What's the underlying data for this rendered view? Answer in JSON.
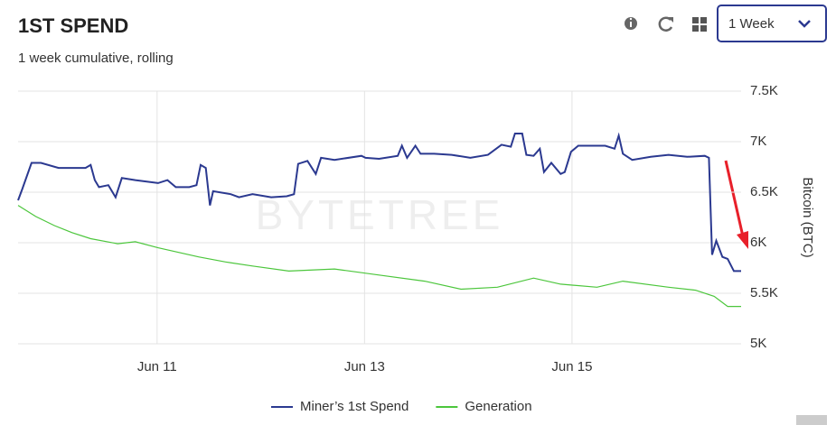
{
  "header": {
    "title": "1ST SPEND",
    "subtitle": "1 week cumulative, rolling",
    "period": "1 Week"
  },
  "chart_data": {
    "type": "line",
    "watermark": "BYTETREE",
    "y_label": "Bitcoin (BTC)",
    "grid": true,
    "legend": "bottom",
    "xlim": [
      9.66,
      16.63
    ],
    "xticks": [
      {
        "value": 11,
        "label": "Jun 11"
      },
      {
        "value": 13,
        "label": "Jun 13"
      },
      {
        "value": 15,
        "label": "Jun 15"
      }
    ],
    "ylim": [
      5000,
      7500
    ],
    "yticks": [
      {
        "value": 5000,
        "label": "5K"
      },
      {
        "value": 5500,
        "label": "5.5K"
      },
      {
        "value": 6000,
        "label": "6K"
      },
      {
        "value": 6500,
        "label": "6.5K"
      },
      {
        "value": 7000,
        "label": "7K"
      },
      {
        "value": 7500,
        "label": "7.5K"
      }
    ],
    "series": [
      {
        "name": "Miner’s 1st Spend",
        "color": "#2b3990",
        "x": [
          9.66,
          9.7,
          9.79,
          9.88,
          10.05,
          10.31,
          10.36,
          10.4,
          10.44,
          10.53,
          10.6,
          10.66,
          10.79,
          11.01,
          11.1,
          11.18,
          11.31,
          11.38,
          11.42,
          11.47,
          11.51,
          11.54,
          11.71,
          11.79,
          11.92,
          12.1,
          12.25,
          12.32,
          12.36,
          12.45,
          12.53,
          12.58,
          12.71,
          12.97,
          13.01,
          13.14,
          13.32,
          13.36,
          13.41,
          13.49,
          13.54,
          13.67,
          13.84,
          14.02,
          14.19,
          14.32,
          14.41,
          14.45,
          14.52,
          14.56,
          14.63,
          14.69,
          14.73,
          14.8,
          14.89,
          14.93,
          14.99,
          15.06,
          15.32,
          15.41,
          15.45,
          15.49,
          15.58,
          15.76,
          15.93,
          16.11,
          16.28,
          16.32,
          16.35,
          16.39,
          16.45,
          16.5,
          16.56,
          16.63
        ],
        "values": [
          6420,
          6530,
          6790,
          6790,
          6740,
          6740,
          6770,
          6620,
          6550,
          6570,
          6450,
          6640,
          6620,
          6590,
          6620,
          6550,
          6550,
          6570,
          6770,
          6740,
          6370,
          6510,
          6480,
          6450,
          6480,
          6450,
          6460,
          6480,
          6780,
          6810,
          6680,
          6840,
          6820,
          6860,
          6840,
          6830,
          6860,
          6960,
          6840,
          6960,
          6880,
          6880,
          6870,
          6840,
          6870,
          6970,
          6950,
          7080,
          7080,
          6870,
          6860,
          6930,
          6700,
          6790,
          6680,
          6700,
          6900,
          6960,
          6960,
          6930,
          7060,
          6880,
          6820,
          6850,
          6870,
          6850,
          6860,
          6840,
          5880,
          6020,
          5860,
          5840,
          5720,
          5720
        ]
      },
      {
        "name": "Generation",
        "color": "#4cc63c",
        "x": [
          9.66,
          9.83,
          10.01,
          10.18,
          10.36,
          10.62,
          10.79,
          11.01,
          11.4,
          11.66,
          11.92,
          12.27,
          12.71,
          13.14,
          13.58,
          13.93,
          14.28,
          14.63,
          14.89,
          15.24,
          15.49,
          15.93,
          16.19,
          16.37,
          16.5,
          16.63
        ],
        "values": [
          6370,
          6260,
          6170,
          6100,
          6040,
          5990,
          6010,
          5950,
          5860,
          5810,
          5770,
          5720,
          5740,
          5680,
          5620,
          5540,
          5560,
          5650,
          5590,
          5560,
          5620,
          5560,
          5530,
          5470,
          5370,
          5370
        ]
      }
    ]
  }
}
